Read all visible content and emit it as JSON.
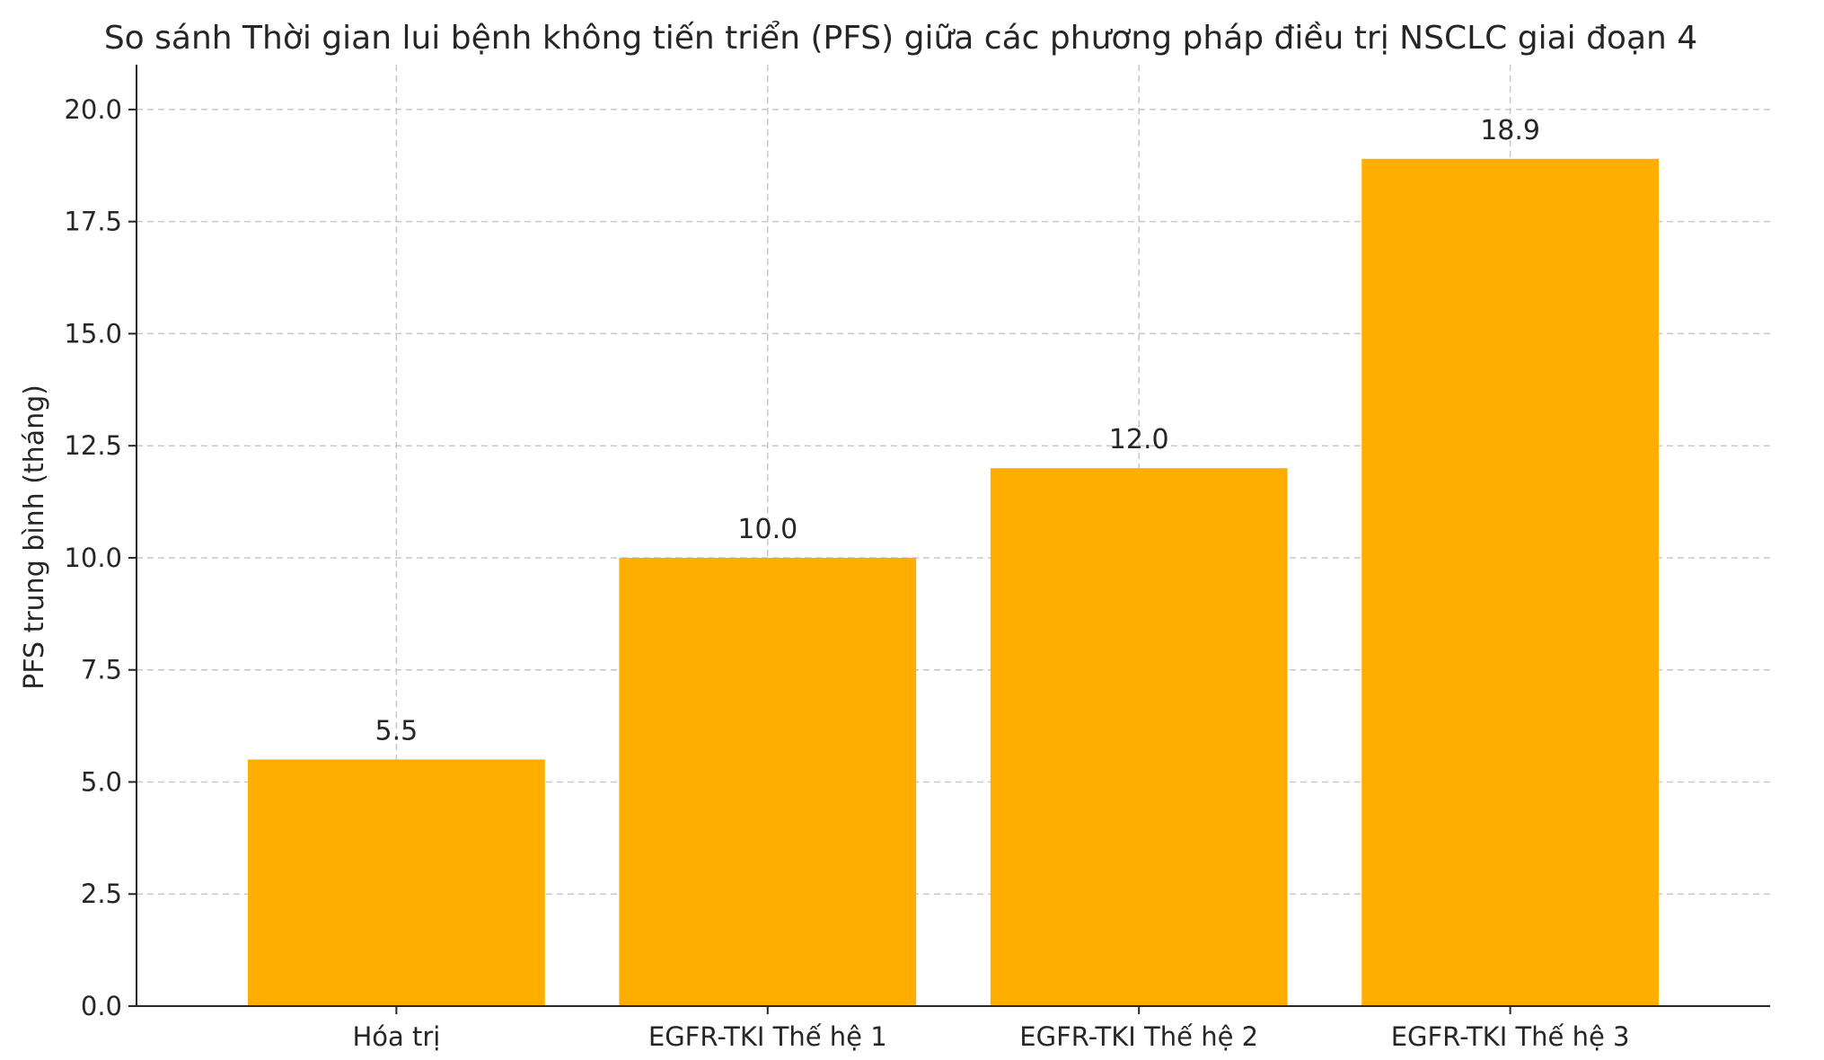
{
  "chart_data": {
    "type": "bar",
    "title": "So sánh Thời gian lui bệnh không tiến triển (PFS) giữa các phương pháp điều trị NSCLC giai đoạn 4",
    "xlabel": "",
    "ylabel": "PFS trung bình (tháng)",
    "categories": [
      "Hóa trị",
      "EGFR-TKI Thế hệ 1",
      "EGFR-TKI Thế hệ 2",
      "EGFR-TKI Thế hệ 3"
    ],
    "values": [
      5.5,
      10.0,
      12.0,
      18.9
    ],
    "value_labels": [
      "5.5",
      "10.0",
      "12.0",
      "18.9"
    ],
    "ylim": [
      0,
      21
    ],
    "yticks": [
      0,
      2.5,
      5,
      7.5,
      10,
      12.5,
      15,
      17.5,
      20
    ],
    "ytick_labels": [
      "0.0",
      "2.5",
      "5.0",
      "7.5",
      "10.0",
      "12.5",
      "15.0",
      "17.5",
      "20.0"
    ],
    "grid": true,
    "bar_color": "#FFAE00",
    "legend": "none"
  }
}
